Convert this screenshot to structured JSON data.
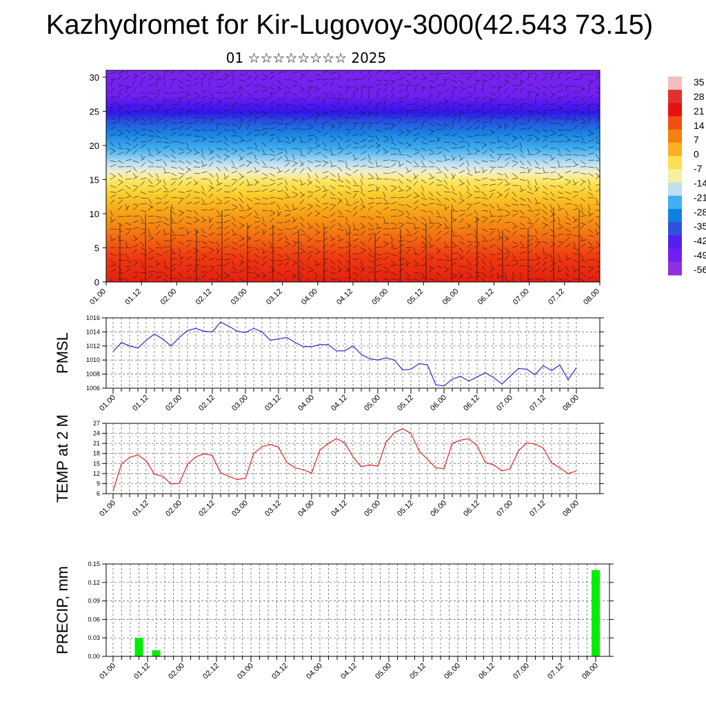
{
  "title": "Kazhydromet for Kir-Lugovoy-3000(42.543 73.15)",
  "subtitle": "01 ☆☆☆☆☆☆☆☆ 2025",
  "colors": {
    "pmsl_line": "#1a1acc",
    "temp_line": "#dd1111",
    "precip_bar": "#00ee00",
    "grid": "#555555"
  },
  "chart_data": [
    {
      "type": "heatmap",
      "title": "",
      "ylabel": "",
      "ylim": [
        0,
        31
      ],
      "yticks": [
        0,
        5,
        10,
        15,
        20,
        25,
        30
      ],
      "x_tick_labels": [
        "01.00",
        "01.12",
        "02.00",
        "02.12",
        "03.00",
        "03.12",
        "04.00",
        "04.12",
        "05.00",
        "05.12",
        "06.00",
        "06.12",
        "07.00",
        "07.12",
        "08.00"
      ],
      "wind_barbs": true,
      "colorbar": {
        "labels": [
          "35",
          "28",
          "21",
          "14",
          "7",
          "0",
          "-7",
          "-14",
          "-21",
          "-28",
          "-35",
          "-42",
          "-49",
          "-56"
        ],
        "colors": [
          "#f0c0c0",
          "#e03030",
          "#e81010",
          "#f05010",
          "#f88010",
          "#fab020",
          "#fde050",
          "#f8f0a0",
          "#c0e0f0",
          "#40b0f0",
          "#1080e0",
          "#3050e0",
          "#5020f0",
          "#7020f0",
          "#9030e0"
        ]
      },
      "temperature_layers": [
        {
          "height_range": [
            0,
            7
          ],
          "approx_value": 21
        },
        {
          "height_range": [
            7,
            13
          ],
          "approx_value": 7
        },
        {
          "height_range": [
            13,
            17
          ],
          "approx_value": -7
        },
        {
          "height_range": [
            17,
            24
          ],
          "approx_value": -35
        },
        {
          "height_range": [
            24,
            26
          ],
          "approx_value": -56
        },
        {
          "height_range": [
            26,
            31
          ],
          "approx_value": -56
        }
      ]
    },
    {
      "type": "line",
      "ylabel": "PMSL",
      "ylim": [
        1006,
        1016
      ],
      "yticks": [
        "1006",
        "1008",
        "1010",
        "1012",
        "1014",
        "1016"
      ],
      "x_tick_labels": [
        "01.00",
        "01.12",
        "02.00",
        "02.12",
        "03.00",
        "03.12",
        "04.00",
        "04.12",
        "05.00",
        "05.12",
        "06.00",
        "06.12",
        "07.00",
        "07.12",
        "08.00"
      ],
      "x": [
        0,
        3,
        6,
        9,
        12,
        15,
        18,
        21,
        24,
        27,
        30,
        33,
        36,
        39,
        42,
        45,
        48,
        51,
        54,
        57,
        60,
        63,
        66,
        69,
        72,
        75,
        78,
        81,
        84,
        87,
        90,
        93,
        96,
        99,
        102,
        105,
        108,
        111,
        114,
        117,
        120,
        123,
        126,
        129,
        132,
        135,
        138,
        141,
        144,
        147,
        150,
        153,
        156,
        159,
        162,
        165,
        168
      ],
      "series": [
        {
          "values": [
            1011.2,
            1012.5,
            1012.0,
            1011.7,
            1012.8,
            1013.7,
            1013.0,
            1012.0,
            1013.2,
            1014.2,
            1014.5,
            1014.1,
            1014.0,
            1015.4,
            1014.8,
            1014.1,
            1013.9,
            1014.5,
            1014.0,
            1012.8,
            1013.0,
            1013.2,
            1012.5,
            1011.9,
            1011.9,
            1012.2,
            1012.2,
            1011.3,
            1011.3,
            1012.0,
            1010.8,
            1010.2,
            1010.0,
            1010.3,
            1010.0,
            1008.6,
            1008.7,
            1009.5,
            1009.3,
            1006.5,
            1006.3,
            1007.3,
            1007.7,
            1007.0,
            1007.6,
            1008.2,
            1007.5,
            1006.6,
            1007.7,
            1008.8,
            1008.7,
            1007.9,
            1009.2,
            1008.5,
            1009.3,
            1007.2,
            1008.9
          ]
        }
      ]
    },
    {
      "type": "line",
      "ylabel": "TEMP at 2 M",
      "ylim": [
        6,
        27
      ],
      "yticks": [
        "6",
        "9",
        "12",
        "15",
        "18",
        "21",
        "24",
        "27"
      ],
      "x_tick_labels": [
        "01.00",
        "01.12",
        "02.00",
        "02.12",
        "03.00",
        "03.12",
        "04.00",
        "04.12",
        "05.00",
        "05.12",
        "06.00",
        "06.12",
        "07.00",
        "07.12",
        "08.00"
      ],
      "x": [
        0,
        3,
        6,
        9,
        12,
        15,
        18,
        21,
        24,
        27,
        30,
        33,
        36,
        39,
        42,
        45,
        48,
        51,
        54,
        57,
        60,
        63,
        66,
        69,
        72,
        75,
        78,
        81,
        84,
        87,
        90,
        93,
        96,
        99,
        102,
        105,
        108,
        111,
        114,
        117,
        120,
        123,
        126,
        129,
        132,
        135,
        138,
        141,
        144,
        147,
        150,
        153,
        156,
        159,
        162,
        165,
        168
      ],
      "series": [
        {
          "values": [
            6.8,
            14.8,
            16.8,
            17.6,
            15.8,
            11.8,
            11.2,
            8.9,
            9.0,
            14.8,
            17.0,
            17.9,
            17.4,
            12.2,
            11.2,
            10.2,
            10.6,
            18.0,
            20.0,
            20.7,
            19.9,
            15.3,
            13.7,
            13.1,
            12.2,
            19.0,
            21.0,
            22.4,
            21.2,
            17.0,
            14.0,
            14.6,
            14.2,
            21.4,
            24.2,
            25.4,
            24.0,
            18.7,
            16.3,
            13.7,
            13.5,
            21.0,
            22.0,
            22.4,
            20.3,
            15.3,
            14.6,
            12.8,
            13.5,
            18.8,
            21.2,
            20.8,
            19.6,
            15.2,
            13.7,
            12.0,
            12.8
          ]
        }
      ]
    },
    {
      "type": "bar",
      "ylabel": "PRECIP, mm",
      "ylim": [
        0,
        0.15
      ],
      "yticks": [
        "0.00",
        "0.03",
        "0.06",
        "0.09",
        "0.12",
        "0.15"
      ],
      "x_tick_labels": [
        "01.00",
        "01.12",
        "02.00",
        "02.12",
        "03.00",
        "03.12",
        "04.00",
        "04.12",
        "05.00",
        "05.12",
        "06.00",
        "06.12",
        "07.00",
        "07.12",
        "08.00"
      ],
      "x": [
        9,
        15,
        168
      ],
      "series": [
        {
          "values": [
            0.03,
            0.01,
            0.14
          ]
        }
      ]
    }
  ]
}
